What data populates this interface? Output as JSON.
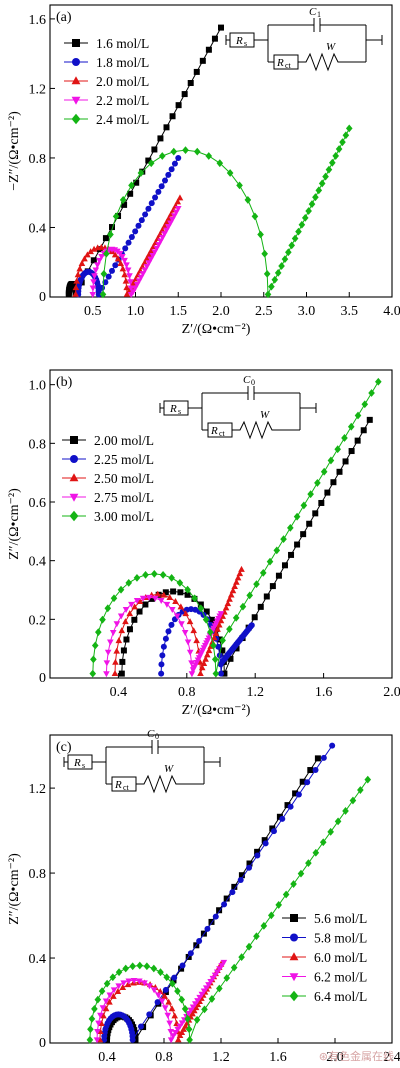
{
  "chart_data": [
    {
      "type": "scatter",
      "panel_label": "(a)",
      "xlabel": "Z′/(Ω•cm⁻²)",
      "ylabel": "−Z″/(Ω•cm⁻²)",
      "xlim": [
        0,
        4.0
      ],
      "ylim": [
        0,
        1.68
      ],
      "xticks": [
        0.5,
        1.0,
        1.5,
        2.0,
        2.5,
        3.0,
        3.5,
        4.0
      ],
      "xtick_labels": [
        "0.5",
        "1.0",
        "1.5",
        "2.0",
        "2.5",
        "3.0",
        "3.5",
        "4.0"
      ],
      "yticks": [
        0.4,
        0.8,
        1.2,
        1.6
      ],
      "ytick_labels": [
        "0.4",
        "0.8",
        "1.2",
        "1.6"
      ],
      "origin_label": "0",
      "legend_position": "top-left",
      "circuit": {
        "position": "top-right",
        "labels": [
          "R",
          "s",
          "C",
          "1",
          "R",
          "ct",
          "W"
        ]
      },
      "series": [
        {
          "name": "1.6 mol/L",
          "color": "#000000",
          "marker": "square",
          "shape": {
            "arc": [
              0.22,
              0.3,
              0.06
            ],
            "tail": [
              [
                0.3,
                0.02
              ],
              [
                2.0,
                1.55
              ]
            ]
          }
        },
        {
          "name": "1.8 mol/L",
          "color": "#1010c8",
          "marker": "circle",
          "shape": {
            "arc": [
              0.33,
              0.57,
              0.13
            ],
            "tail": [
              [
                0.57,
                0.02
              ],
              [
                1.5,
                0.8
              ]
            ]
          }
        },
        {
          "name": "2.0 mol/L",
          "color": "#e01414",
          "marker": "triangle",
          "shape": {
            "arc": [
              0.3,
              0.9,
              0.27
            ],
            "tail": [
              [
                0.9,
                0.01
              ],
              [
                1.52,
                0.57
              ]
            ]
          }
        },
        {
          "name": "2.2 mol/L",
          "color": "#f014e6",
          "marker": "triangle-down",
          "shape": {
            "arc": [
              0.5,
              0.95,
              0.26
            ],
            "tail": [
              [
                0.95,
                0.01
              ],
              [
                1.5,
                0.51
              ]
            ]
          }
        },
        {
          "name": "2.4 mol/L",
          "color": "#14b414",
          "marker": "diamond",
          "shape": {
            "arc": [
              0.62,
              2.55,
              0.83
            ],
            "tail": [
              [
                2.55,
                0.02
              ],
              [
                3.5,
                0.97
              ]
            ]
          }
        }
      ]
    },
    {
      "type": "scatter",
      "panel_label": "(b)",
      "xlabel": "Z′/(Ω•cm⁻²)",
      "ylabel": "Z″/(Ω•cm⁻²)",
      "xlim": [
        0,
        2.0
      ],
      "ylim": [
        0,
        1.05
      ],
      "xticks": [
        0.4,
        0.8,
        1.2,
        1.6,
        2.0
      ],
      "xtick_labels": [
        "0.4",
        "0.8",
        "1.2",
        "1.6",
        "2.0"
      ],
      "yticks": [
        0.2,
        0.4,
        0.6,
        0.8,
        1.0
      ],
      "ytick_labels": [
        "0.2",
        "0.4",
        "0.6",
        "0.8",
        "1.0"
      ],
      "origin_label": "0",
      "legend_position": "upper-left",
      "circuit": {
        "position": "top-center",
        "labels": [
          "R",
          "s",
          "C",
          "0",
          "R",
          "ct",
          "W"
        ]
      },
      "series": [
        {
          "name": "2.00 mol/L",
          "color": "#000000",
          "marker": "square",
          "shape": {
            "arc": [
              0.42,
              1.02,
              0.28
            ],
            "tail": [
              [
                1.02,
                0.03
              ],
              [
                1.87,
                0.88
              ]
            ]
          }
        },
        {
          "name": "2.25 mol/L",
          "color": "#1010c8",
          "marker": "circle",
          "shape": {
            "arc": [
              0.65,
              1.0,
              0.22
            ],
            "tail": [
              [
                1.0,
                0.05
              ],
              [
                1.18,
                0.18
              ]
            ]
          }
        },
        {
          "name": "2.50 mol/L",
          "color": "#e01414",
          "marker": "triangle",
          "shape": {
            "arc": [
              0.38,
              0.88,
              0.27
            ],
            "tail": [
              [
                0.88,
                0.02
              ],
              [
                1.12,
                0.37
              ]
            ]
          }
        },
        {
          "name": "2.75 mol/L",
          "color": "#f014e6",
          "marker": "triangle-down",
          "shape": {
            "arc": [
              0.33,
              0.83,
              0.26
            ],
            "tail": [
              [
                0.83,
                0.02
              ],
              [
                1.0,
                0.22
              ]
            ]
          }
        },
        {
          "name": "3.00 mol/L",
          "color": "#14b414",
          "marker": "diamond",
          "shape": {
            "arc": [
              0.25,
              0.97,
              0.34
            ],
            "tail": [
              [
                0.97,
                0.09
              ],
              [
                1.92,
                1.01
              ]
            ]
          }
        }
      ]
    },
    {
      "type": "scatter",
      "panel_label": "(c)",
      "xlabel": "Z′/(Ω•cm⁻²)",
      "ylabel": "Z″/(Ω•cm⁻²)",
      "xlim": [
        0,
        2.4
      ],
      "ylim": [
        0,
        1.45
      ],
      "xticks": [
        0.4,
        0.8,
        1.2,
        1.6,
        2.0,
        2.4
      ],
      "xtick_labels": [
        "0.4",
        "0.8",
        "1.2",
        "1.6",
        "2.0",
        "2.4"
      ],
      "yticks": [
        0.4,
        0.8,
        1.2
      ],
      "ytick_labels": [
        "0.4",
        "0.8",
        "1.2"
      ],
      "origin_label": "0",
      "legend_position": "bottom-right",
      "circuit": {
        "position": "top-left",
        "labels": [
          "R",
          "s",
          "C",
          "0",
          "R",
          "ct",
          "W"
        ]
      },
      "series": [
        {
          "name": "5.6 mol/L",
          "color": "#000000",
          "marker": "square",
          "shape": {
            "arc": [
              0.4,
              0.6,
              0.11
            ],
            "tail": [
              [
                0.6,
                0.02
              ],
              [
                1.88,
                1.34
              ]
            ]
          }
        },
        {
          "name": "5.8 mol/L",
          "color": "#1010c8",
          "marker": "circle",
          "shape": {
            "arc": [
              0.38,
              0.58,
              0.12
            ],
            "tail": [
              [
                0.58,
                0.02
              ],
              [
                1.98,
                1.4
              ]
            ]
          }
        },
        {
          "name": "6.0 mol/L",
          "color": "#e01414",
          "marker": "triangle",
          "shape": {
            "arc": [
              0.35,
              0.9,
              0.27
            ],
            "tail": [
              [
                0.9,
                0.02
              ],
              [
                1.2,
                0.37
              ]
            ]
          }
        },
        {
          "name": "6.2 mol/L",
          "color": "#f014e6",
          "marker": "triangle-down",
          "shape": {
            "arc": [
              0.33,
              0.85,
              0.28
            ],
            "tail": [
              [
                0.85,
                0.02
              ],
              [
                1.22,
                0.38
              ]
            ]
          }
        },
        {
          "name": "6.4 mol/L",
          "color": "#14b414",
          "marker": "diamond",
          "shape": {
            "arc": [
              0.28,
              0.98,
              0.35
            ],
            "tail": [
              [
                0.98,
                0.06
              ],
              [
                2.23,
                1.24
              ]
            ]
          }
        }
      ]
    }
  ],
  "watermark": "⊛有色金属在线"
}
